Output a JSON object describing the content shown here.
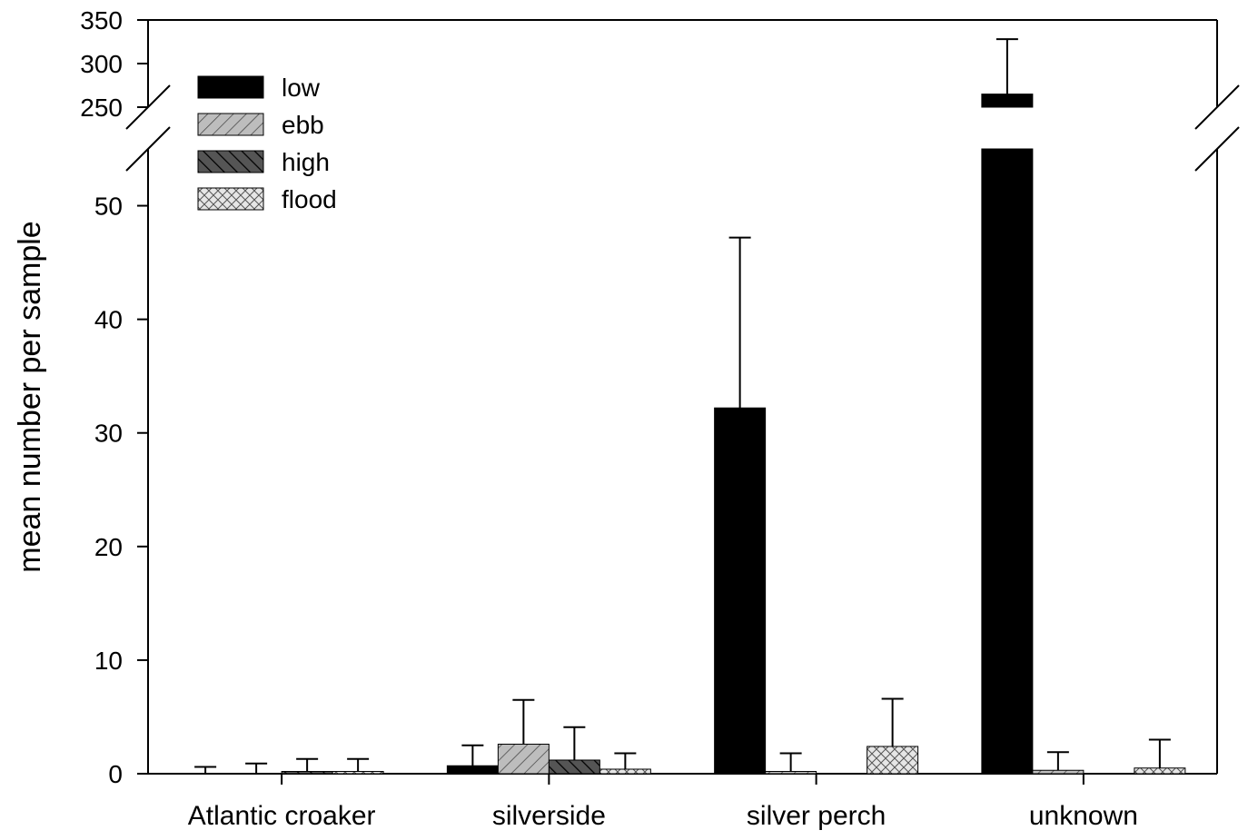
{
  "chart_data": {
    "type": "bar",
    "title": "",
    "xlabel": "",
    "ylabel": "mean number per sample",
    "categories": [
      "Atlantic croaker",
      "silverside",
      "silver perch",
      "unknown"
    ],
    "series": [
      {
        "name": "low",
        "values": [
          0.0,
          0.7,
          32.2,
          265
        ],
        "errors": [
          0.6,
          1.8,
          15.0,
          63
        ],
        "fill": "solid-black"
      },
      {
        "name": "ebb",
        "values": [
          0.0,
          2.6,
          0.2,
          0.3
        ],
        "errors": [
          0.9,
          3.9,
          1.6,
          1.6
        ],
        "fill": "diagonal-hatch-gray"
      },
      {
        "name": "high",
        "values": [
          0.2,
          1.2,
          0.0,
          0.0
        ],
        "errors": [
          1.1,
          2.9,
          0.0,
          0.0
        ],
        "fill": "backslash-hatch-dark"
      },
      {
        "name": "flood",
        "values": [
          0.2,
          0.4,
          2.4,
          0.5
        ],
        "errors": [
          1.1,
          1.4,
          4.2,
          2.5
        ],
        "fill": "crosshatch-light"
      }
    ],
    "y_axis": {
      "broken": true,
      "lower_segment": {
        "range": [
          0,
          55
        ],
        "ticks": [
          0,
          10,
          20,
          30,
          40,
          50
        ]
      },
      "upper_segment": {
        "range": [
          250,
          350
        ],
        "ticks": [
          250,
          300,
          350
        ]
      }
    },
    "y_tick_labels": [
      "0",
      "10",
      "20",
      "30",
      "40",
      "50",
      "250",
      "300",
      "350"
    ],
    "legend": {
      "placement": "top-left",
      "entries": [
        "low",
        "ebb",
        "high",
        "flood"
      ]
    },
    "grid": false,
    "colors": {
      "low": "#000000",
      "ebb": "#bdbdbd",
      "high": "#555555",
      "flood": "#e6e6e6"
    }
  }
}
